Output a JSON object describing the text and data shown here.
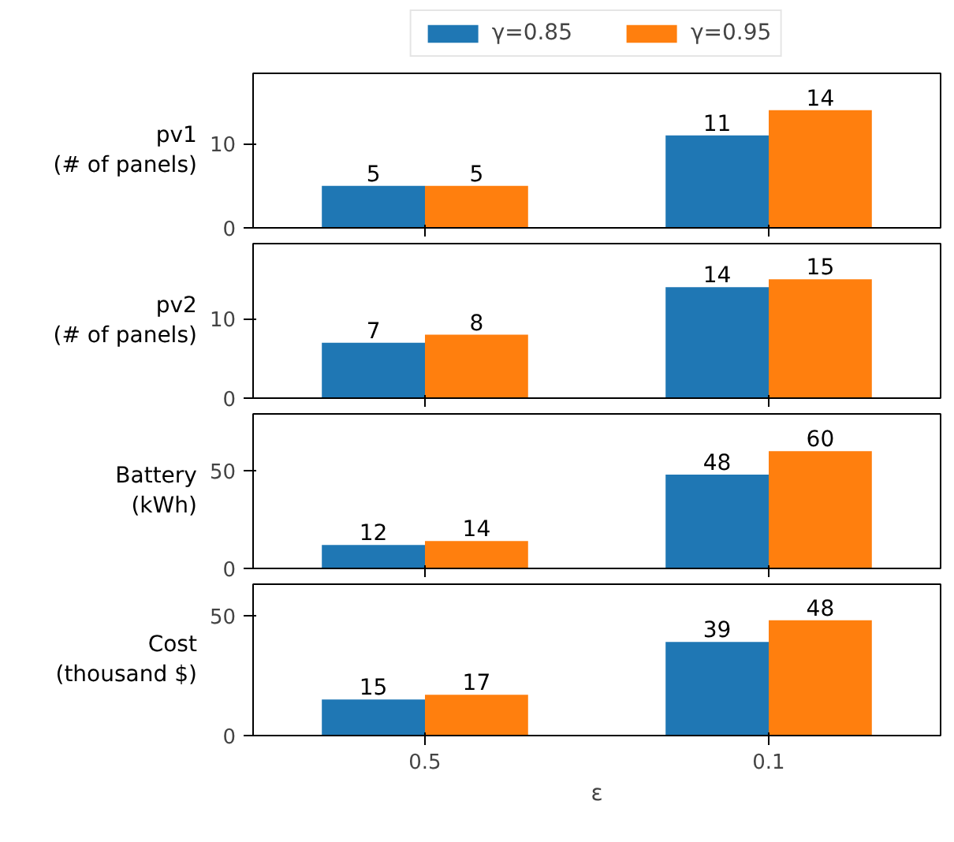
{
  "chart_data": [
    {
      "type": "bar",
      "ylabel": "pv1\n(# of panels)",
      "categories": [
        "0.5",
        "0.1"
      ],
      "series": [
        {
          "name": "γ=0.85",
          "color": "#1f77b4",
          "values": [
            5,
            11
          ]
        },
        {
          "name": "γ=0.95",
          "color": "#ff7f0e",
          "values": [
            5,
            14
          ]
        }
      ],
      "ylim": [
        0,
        18.4
      ],
      "yticks": [
        0,
        10
      ],
      "data_labels": true,
      "tick_labels": "y",
      "legend": "top"
    },
    {
      "type": "bar",
      "ylabel": "pv2\n(# of panels)",
      "categories": [
        "0.5",
        "0.1"
      ],
      "series": [
        {
          "color": "#1f77b4",
          "values": [
            7,
            14
          ]
        },
        {
          "color": "#ff7f0e",
          "values": [
            8,
            15
          ]
        }
      ],
      "ylim": [
        0,
        19.5
      ],
      "yticks": [
        0,
        10
      ],
      "data_labels": true,
      "tick_labels": "y"
    },
    {
      "type": "bar",
      "ylabel": "Battery\n(kWh)",
      "categories": [
        "0.5",
        "0.1"
      ],
      "series": [
        {
          "color": "#1f77b4",
          "values": [
            12,
            48
          ]
        },
        {
          "color": "#ff7f0e",
          "values": [
            14,
            60
          ]
        }
      ],
      "ylim": [
        0,
        79
      ],
      "yticks": [
        0,
        50
      ],
      "data_labels": true,
      "tick_labels": "y"
    },
    {
      "type": "bar",
      "ylabel": "Cost\n(thousand $)",
      "xlabel": "ε",
      "categories": [
        "0.5",
        "0.1"
      ],
      "series": [
        {
          "color": "#1f77b4",
          "values": [
            15,
            39
          ]
        },
        {
          "color": "#ff7f0e",
          "values": [
            17,
            48
          ]
        }
      ],
      "ylim": [
        0,
        63
      ],
      "yticks": [
        0,
        50
      ],
      "data_labels": true
    }
  ]
}
